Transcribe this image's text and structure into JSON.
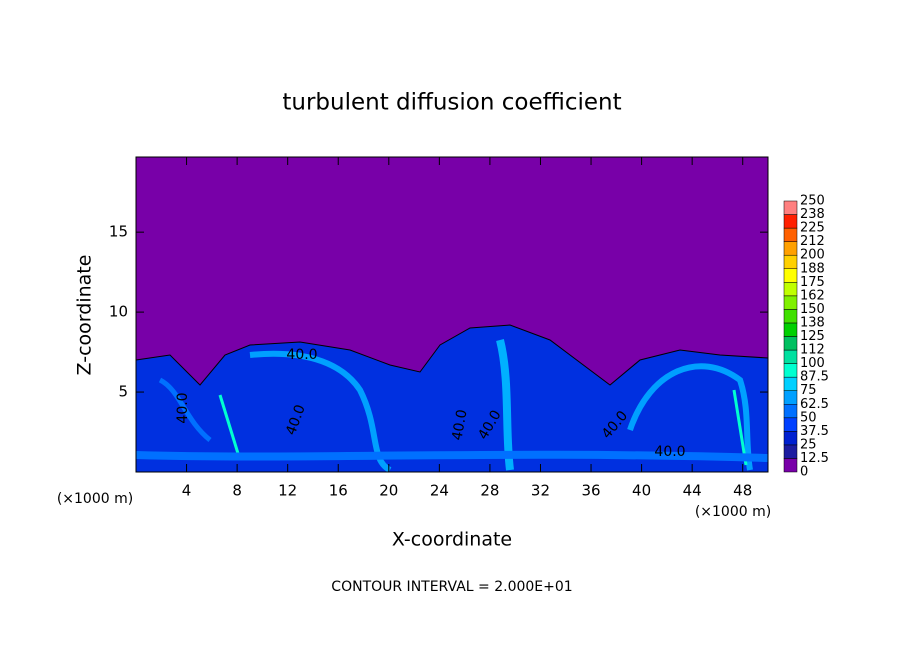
{
  "chart_data": {
    "type": "contour",
    "title": "turbulent diffusion coefficient",
    "xlabel": "X-coordinate",
    "ylabel": "Z-coordinate",
    "x_unit_label": "(×1000 m)",
    "y_unit_label": "(×1000 m)",
    "footer": "CONTOUR INTERVAL = 2.000E+01",
    "xlim": [
      0,
      50
    ],
    "ylim": [
      0,
      19.7
    ],
    "xticks": [
      4,
      8,
      12,
      16,
      20,
      24,
      28,
      32,
      36,
      40,
      44,
      48
    ],
    "yticks": [
      5,
      10,
      15
    ],
    "contour_labels": [
      {
        "value": 40,
        "label": "40.0"
      },
      {
        "value": 40,
        "label": "40.0"
      },
      {
        "value": 40,
        "label": "40.0"
      },
      {
        "value": 40,
        "label": "40.0"
      },
      {
        "value": 40,
        "label": "40.0"
      },
      {
        "value": 40,
        "label": "40.0"
      },
      {
        "value": 40,
        "label": "40.0"
      }
    ],
    "colorbar": {
      "levels": [
        0,
        12.5,
        25,
        37.5,
        50,
        62.5,
        75,
        87.5,
        100,
        112,
        125,
        138,
        150,
        162,
        175,
        188,
        200,
        212,
        225,
        238,
        250
      ],
      "colors": [
        "#7800a8",
        "#1c1ca0",
        "#0020d0",
        "#0040ff",
        "#0070ff",
        "#00a0ff",
        "#00d0ff",
        "#00ffd0",
        "#00e0a0",
        "#00c060",
        "#00d000",
        "#40e000",
        "#80f000",
        "#c0ff00",
        "#ffff00",
        "#ffd000",
        "#ffa000",
        "#ff6000",
        "#ff2000",
        "#ff8080"
      ]
    }
  }
}
